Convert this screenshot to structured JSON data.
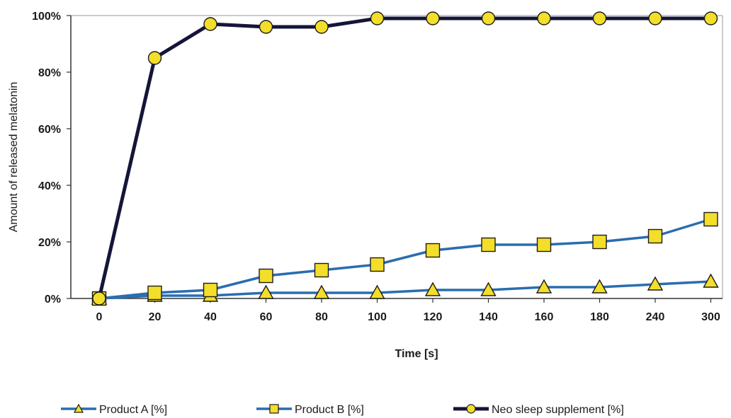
{
  "chart_data": {
    "type": "line",
    "title": "",
    "xlabel": "Time [s]",
    "ylabel": "Amount of released melatonin",
    "categories": [
      "0",
      "20",
      "40",
      "60",
      "80",
      "100",
      "120",
      "140",
      "160",
      "180",
      "240",
      "300"
    ],
    "yticks": [
      "0%",
      "20%",
      "40%",
      "60%",
      "80%",
      "100%"
    ],
    "ylim": [
      0,
      100
    ],
    "grid": false,
    "legend_position": "bottom",
    "series": [
      {
        "name": "Product A [%]",
        "marker": "triangle",
        "line_color": "#2a6db0",
        "marker_color": "#f3de2a",
        "values": [
          0,
          1,
          1,
          2,
          2,
          2,
          3,
          3,
          4,
          4,
          5,
          6
        ]
      },
      {
        "name": "Product B [%]",
        "marker": "square",
        "line_color": "#2a6db0",
        "marker_color": "#f3de2a",
        "values": [
          0,
          2,
          3,
          8,
          10,
          12,
          17,
          19,
          19,
          20,
          22,
          28
        ]
      },
      {
        "name": "Neo sleep supplement [%]",
        "marker": "circle",
        "line_color": "#15153a",
        "marker_color": "#f3de2a",
        "values": [
          0,
          85,
          97,
          96,
          96,
          99,
          99,
          99,
          99,
          99,
          99,
          99
        ]
      }
    ]
  }
}
